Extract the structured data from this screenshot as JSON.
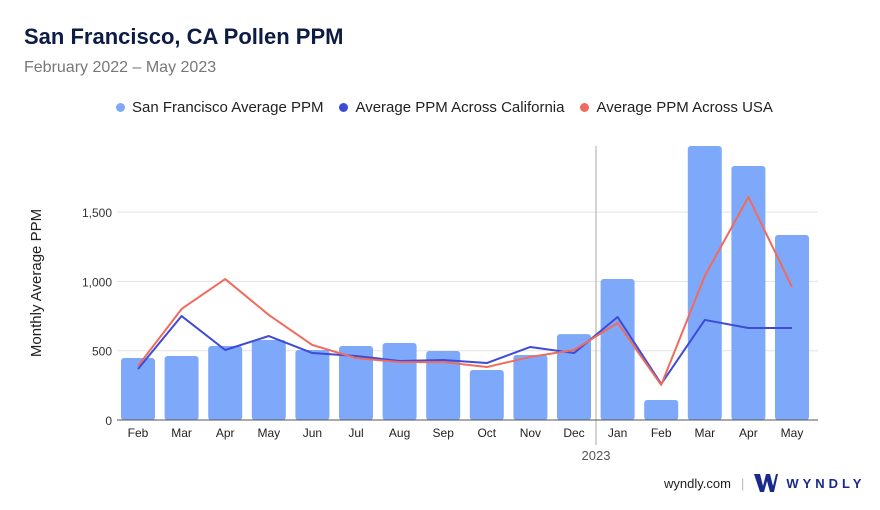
{
  "title": "San Francisco, CA Pollen PPM",
  "subtitle": "February 2022 – May 2023",
  "footer": {
    "site": "wyndly.com",
    "brand": "WYNDLY"
  },
  "chart_data": {
    "type": "bar+line",
    "ylabel": "Monthly Average PPM",
    "xlabel": "",
    "year_marker": "2023",
    "categories": [
      "Feb",
      "Mar",
      "Apr",
      "May",
      "Jun",
      "Jul",
      "Aug",
      "Sep",
      "Oct",
      "Nov",
      "Dec",
      "Jan",
      "Feb",
      "Mar",
      "Apr",
      "May"
    ],
    "yticks": [
      0,
      500,
      1000,
      1500
    ],
    "ytick_labels": [
      "0",
      "500",
      "1,000",
      "1,500"
    ],
    "ylim": [
      0,
      2000
    ],
    "grid": true,
    "legend_position": "top",
    "series": [
      {
        "name": "San Francisco Average PPM",
        "kind": "bar",
        "color": "#7ea9fa",
        "values": [
          447,
          462,
          534,
          577,
          505,
          534,
          556,
          498,
          361,
          469,
          620,
          1017,
          144,
          1977,
          1833,
          1335
        ]
      },
      {
        "name": "Average PPM Across California",
        "kind": "line",
        "color": "#3d4bd6",
        "values": [
          368,
          750,
          505,
          606,
          483,
          462,
          426,
          433,
          411,
          527,
          483,
          743,
          260,
          722,
          664,
          664
        ]
      },
      {
        "name": "Average PPM Across USA",
        "kind": "line",
        "color": "#f06b5e",
        "values": [
          390,
          801,
          1017,
          758,
          541,
          447,
          418,
          418,
          382,
          455,
          505,
          700,
          253,
          1039,
          1609,
          960
        ]
      }
    ]
  }
}
